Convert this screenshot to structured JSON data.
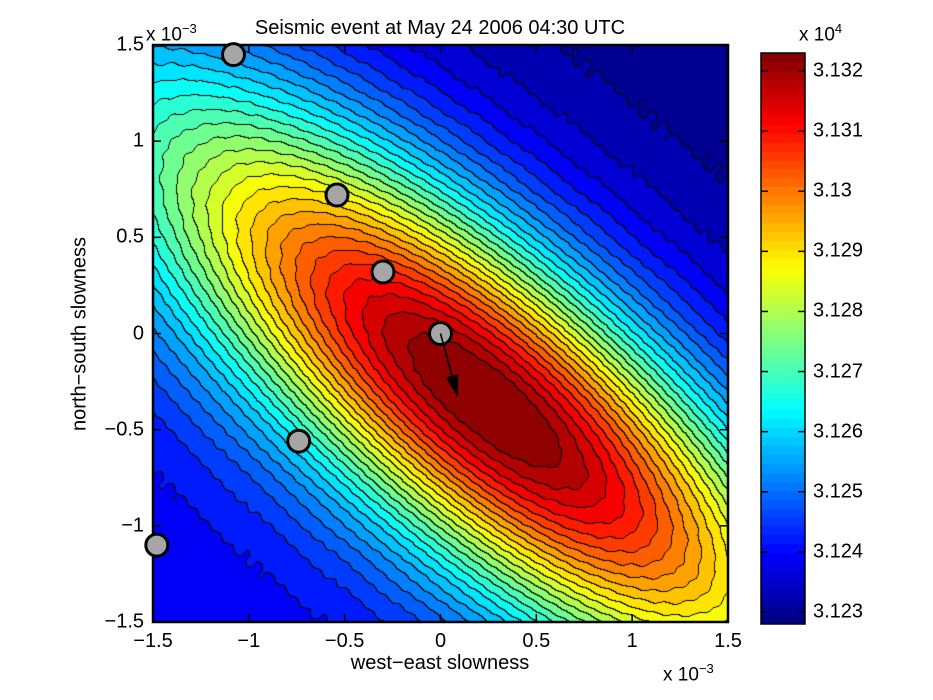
{
  "chart_data": {
    "type": "contour-filled",
    "title": "Seismic event at May 24 2006 04:30 UTC",
    "xlabel": "west−east slowness",
    "ylabel": "north−south slowness",
    "axis_scale": {
      "base": "x 10",
      "exp": "−3"
    },
    "colorbar_scale": {
      "base": "x 10",
      "exp": "4"
    },
    "xlim": [
      -1.5,
      1.5
    ],
    "ylim": [
      -1.5,
      1.5
    ],
    "xticks": [
      -1.5,
      -1,
      -0.5,
      0,
      0.5,
      1,
      1.5
    ],
    "yticks": [
      -1.5,
      -1,
      -0.5,
      0,
      0.5,
      1,
      1.5
    ],
    "xtick_labels": [
      "−1.5",
      "−1",
      "−0.5",
      "0",
      "0.5",
      "1",
      "1.5"
    ],
    "ytick_labels": [
      "−1.5",
      "−1",
      "−0.5",
      "0",
      "0.5",
      "1",
      "1.5"
    ],
    "grid": false,
    "colormap": "jet",
    "n_levels": 30,
    "colorbar": {
      "vmin": 31228,
      "vmax": 31323,
      "n_colors": 64,
      "tick_values": [
        31320,
        31310,
        31300,
        31290,
        31280,
        31270,
        31260,
        31250,
        31240,
        31230
      ],
      "tick_labels": [
        "3.132",
        "3.131",
        "3.13",
        "3.129",
        "3.128",
        "3.127",
        "3.126",
        "3.125",
        "3.124",
        "3.123"
      ]
    },
    "field_model": {
      "comment": "beam-power surface: elongated gaussian ridge tilted NW-SE, values x 1e4, coords x 1e-3",
      "center": [
        0.25,
        -0.35
      ],
      "angle_deg": -40,
      "sigma_major": 1.55,
      "sigma_minor": 0.5,
      "core_weight": 0.85,
      "skirt_weight": 0.15,
      "skirt_scale": 7,
      "skew_amp": 0.09,
      "skew_offset": 0.3,
      "skew_span": 3,
      "wiggle_amp": 0.0035,
      "wiggle_freq_x": 55,
      "wiggle_freq_y": 47
    },
    "markers": [
      [
        -1.08,
        1.45
      ],
      [
        -0.54,
        0.72
      ],
      [
        -0.3,
        0.32
      ],
      [
        0.0,
        0.0
      ],
      [
        -0.74,
        -0.56
      ],
      [
        -1.48,
        -1.1
      ]
    ],
    "marker_style": {
      "radius": 11,
      "fill": "#a6a6a6",
      "stroke": "#000000",
      "stroke_width": 3
    },
    "arrow": {
      "from": [
        0.0,
        0.0
      ],
      "to": [
        0.09,
        -0.33
      ],
      "color": "#000000"
    }
  }
}
